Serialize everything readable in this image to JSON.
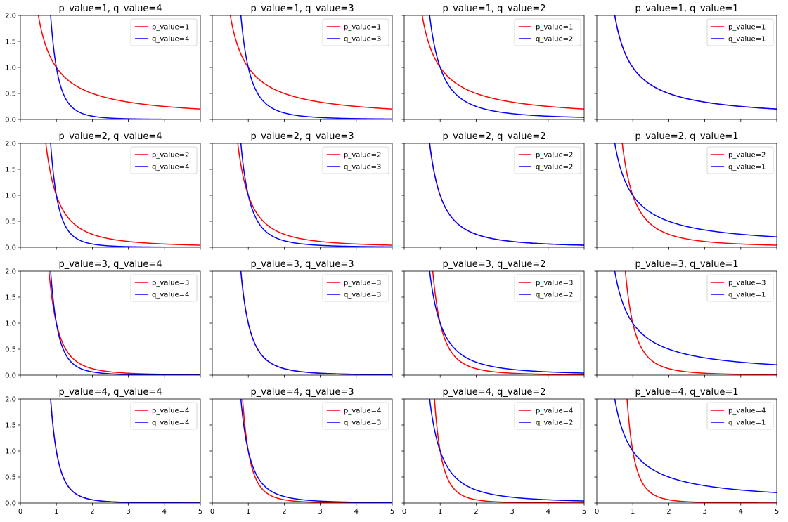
{
  "chart_data": [
    {
      "type": "line",
      "title": "p_value=1, q_value=4",
      "xlim": [
        0,
        5
      ],
      "ylim": [
        0,
        2
      ],
      "x_ticks": [
        "0",
        "1",
        "2",
        "3",
        "4",
        "5"
      ],
      "y_ticks": [
        "0.0",
        "0.5",
        "1.0",
        "1.5",
        "2.0"
      ],
      "legend": "top-right",
      "function": "y = x^(-n)",
      "series": [
        {
          "name": "p_value=1",
          "exponent": 1,
          "color": "#ff0000"
        },
        {
          "name": "q_value=4",
          "exponent": 4,
          "color": "#0000ff"
        }
      ]
    },
    {
      "type": "line",
      "title": "p_value=1, q_value=3",
      "xlim": [
        0,
        5
      ],
      "ylim": [
        0,
        2
      ],
      "x_ticks": [
        "0",
        "1",
        "2",
        "3",
        "4",
        "5"
      ],
      "y_ticks": [
        "0.0",
        "0.5",
        "1.0",
        "1.5",
        "2.0"
      ],
      "legend": "top-right",
      "function": "y = x^(-n)",
      "series": [
        {
          "name": "p_value=1",
          "exponent": 1,
          "color": "#ff0000"
        },
        {
          "name": "q_value=3",
          "exponent": 3,
          "color": "#0000ff"
        }
      ]
    },
    {
      "type": "line",
      "title": "p_value=1, q_value=2",
      "xlim": [
        0,
        5
      ],
      "ylim": [
        0,
        2
      ],
      "x_ticks": [
        "0",
        "1",
        "2",
        "3",
        "4",
        "5"
      ],
      "y_ticks": [
        "0.0",
        "0.5",
        "1.0",
        "1.5",
        "2.0"
      ],
      "legend": "top-right",
      "function": "y = x^(-n)",
      "series": [
        {
          "name": "p_value=1",
          "exponent": 1,
          "color": "#ff0000"
        },
        {
          "name": "q_value=2",
          "exponent": 2,
          "color": "#0000ff"
        }
      ]
    },
    {
      "type": "line",
      "title": "p_value=1, q_value=1",
      "xlim": [
        0,
        5
      ],
      "ylim": [
        0,
        2
      ],
      "x_ticks": [
        "0",
        "1",
        "2",
        "3",
        "4",
        "5"
      ],
      "y_ticks": [
        "0.0",
        "0.5",
        "1.0",
        "1.5",
        "2.0"
      ],
      "legend": "top-right",
      "function": "y = x^(-n)",
      "series": [
        {
          "name": "p_value=1",
          "exponent": 1,
          "color": "#ff0000"
        },
        {
          "name": "q_value=1",
          "exponent": 1,
          "color": "#0000ff"
        }
      ]
    },
    {
      "type": "line",
      "title": "p_value=2, q_value=4",
      "xlim": [
        0,
        5
      ],
      "ylim": [
        0,
        2
      ],
      "x_ticks": [
        "0",
        "1",
        "2",
        "3",
        "4",
        "5"
      ],
      "y_ticks": [
        "0.0",
        "0.5",
        "1.0",
        "1.5",
        "2.0"
      ],
      "legend": "top-right",
      "function": "y = x^(-n)",
      "series": [
        {
          "name": "p_value=2",
          "exponent": 2,
          "color": "#ff0000"
        },
        {
          "name": "q_value=4",
          "exponent": 4,
          "color": "#0000ff"
        }
      ]
    },
    {
      "type": "line",
      "title": "p_value=2, q_value=3",
      "xlim": [
        0,
        5
      ],
      "ylim": [
        0,
        2
      ],
      "x_ticks": [
        "0",
        "1",
        "2",
        "3",
        "4",
        "5"
      ],
      "y_ticks": [
        "0.0",
        "0.5",
        "1.0",
        "1.5",
        "2.0"
      ],
      "legend": "top-right",
      "function": "y = x^(-n)",
      "series": [
        {
          "name": "p_value=2",
          "exponent": 2,
          "color": "#ff0000"
        },
        {
          "name": "q_value=3",
          "exponent": 3,
          "color": "#0000ff"
        }
      ]
    },
    {
      "type": "line",
      "title": "p_value=2, q_value=2",
      "xlim": [
        0,
        5
      ],
      "ylim": [
        0,
        2
      ],
      "x_ticks": [
        "0",
        "1",
        "2",
        "3",
        "4",
        "5"
      ],
      "y_ticks": [
        "0.0",
        "0.5",
        "1.0",
        "1.5",
        "2.0"
      ],
      "legend": "top-right",
      "function": "y = x^(-n)",
      "series": [
        {
          "name": "p_value=2",
          "exponent": 2,
          "color": "#ff0000"
        },
        {
          "name": "q_value=2",
          "exponent": 2,
          "color": "#0000ff"
        }
      ]
    },
    {
      "type": "line",
      "title": "p_value=2, q_value=1",
      "xlim": [
        0,
        5
      ],
      "ylim": [
        0,
        2
      ],
      "x_ticks": [
        "0",
        "1",
        "2",
        "3",
        "4",
        "5"
      ],
      "y_ticks": [
        "0.0",
        "0.5",
        "1.0",
        "1.5",
        "2.0"
      ],
      "legend": "top-right",
      "function": "y = x^(-n)",
      "series": [
        {
          "name": "p_value=2",
          "exponent": 2,
          "color": "#ff0000"
        },
        {
          "name": "q_value=1",
          "exponent": 1,
          "color": "#0000ff"
        }
      ]
    },
    {
      "type": "line",
      "title": "p_value=3, q_value=4",
      "xlim": [
        0,
        5
      ],
      "ylim": [
        0,
        2
      ],
      "x_ticks": [
        "0",
        "1",
        "2",
        "3",
        "4",
        "5"
      ],
      "y_ticks": [
        "0.0",
        "0.5",
        "1.0",
        "1.5",
        "2.0"
      ],
      "legend": "top-right",
      "function": "y = x^(-n)",
      "series": [
        {
          "name": "p_value=3",
          "exponent": 3,
          "color": "#ff0000"
        },
        {
          "name": "q_value=4",
          "exponent": 4,
          "color": "#0000ff"
        }
      ]
    },
    {
      "type": "line",
      "title": "p_value=3, q_value=3",
      "xlim": [
        0,
        5
      ],
      "ylim": [
        0,
        2
      ],
      "x_ticks": [
        "0",
        "1",
        "2",
        "3",
        "4",
        "5"
      ],
      "y_ticks": [
        "0.0",
        "0.5",
        "1.0",
        "1.5",
        "2.0"
      ],
      "legend": "top-right",
      "function": "y = x^(-n)",
      "series": [
        {
          "name": "p_value=3",
          "exponent": 3,
          "color": "#ff0000"
        },
        {
          "name": "q_value=3",
          "exponent": 3,
          "color": "#0000ff"
        }
      ]
    },
    {
      "type": "line",
      "title": "p_value=3, q_value=2",
      "xlim": [
        0,
        5
      ],
      "ylim": [
        0,
        2
      ],
      "x_ticks": [
        "0",
        "1",
        "2",
        "3",
        "4",
        "5"
      ],
      "y_ticks": [
        "0.0",
        "0.5",
        "1.0",
        "1.5",
        "2.0"
      ],
      "legend": "top-right",
      "function": "y = x^(-n)",
      "series": [
        {
          "name": "p_value=3",
          "exponent": 3,
          "color": "#ff0000"
        },
        {
          "name": "q_value=2",
          "exponent": 2,
          "color": "#0000ff"
        }
      ]
    },
    {
      "type": "line",
      "title": "p_value=3, q_value=1",
      "xlim": [
        0,
        5
      ],
      "ylim": [
        0,
        2
      ],
      "x_ticks": [
        "0",
        "1",
        "2",
        "3",
        "4",
        "5"
      ],
      "y_ticks": [
        "0.0",
        "0.5",
        "1.0",
        "1.5",
        "2.0"
      ],
      "legend": "top-right",
      "function": "y = x^(-n)",
      "series": [
        {
          "name": "p_value=3",
          "exponent": 3,
          "color": "#ff0000"
        },
        {
          "name": "q_value=1",
          "exponent": 1,
          "color": "#0000ff"
        }
      ]
    },
    {
      "type": "line",
      "title": "p_value=4, q_value=4",
      "xlim": [
        0,
        5
      ],
      "ylim": [
        0,
        2
      ],
      "x_ticks": [
        "0",
        "1",
        "2",
        "3",
        "4",
        "5"
      ],
      "y_ticks": [
        "0.0",
        "0.5",
        "1.0",
        "1.5",
        "2.0"
      ],
      "legend": "top-right",
      "function": "y = x^(-n)",
      "series": [
        {
          "name": "p_value=4",
          "exponent": 4,
          "color": "#ff0000"
        },
        {
          "name": "q_value=4",
          "exponent": 4,
          "color": "#0000ff"
        }
      ]
    },
    {
      "type": "line",
      "title": "p_value=4, q_value=3",
      "xlim": [
        0,
        5
      ],
      "ylim": [
        0,
        2
      ],
      "x_ticks": [
        "0",
        "1",
        "2",
        "3",
        "4",
        "5"
      ],
      "y_ticks": [
        "0.0",
        "0.5",
        "1.0",
        "1.5",
        "2.0"
      ],
      "legend": "top-right",
      "function": "y = x^(-n)",
      "series": [
        {
          "name": "p_value=4",
          "exponent": 4,
          "color": "#ff0000"
        },
        {
          "name": "q_value=3",
          "exponent": 3,
          "color": "#0000ff"
        }
      ]
    },
    {
      "type": "line",
      "title": "p_value=4, q_value=2",
      "xlim": [
        0,
        5
      ],
      "ylim": [
        0,
        2
      ],
      "x_ticks": [
        "0",
        "1",
        "2",
        "3",
        "4",
        "5"
      ],
      "y_ticks": [
        "0.0",
        "0.5",
        "1.0",
        "1.5",
        "2.0"
      ],
      "legend": "top-right",
      "function": "y = x^(-n)",
      "series": [
        {
          "name": "p_value=4",
          "exponent": 4,
          "color": "#ff0000"
        },
        {
          "name": "q_value=2",
          "exponent": 2,
          "color": "#0000ff"
        }
      ]
    },
    {
      "type": "line",
      "title": "p_value=4, q_value=1",
      "xlim": [
        0,
        5
      ],
      "ylim": [
        0,
        2
      ],
      "x_ticks": [
        "0",
        "1",
        "2",
        "3",
        "4",
        "5"
      ],
      "y_ticks": [
        "0.0",
        "0.5",
        "1.0",
        "1.5",
        "2.0"
      ],
      "legend": "top-right",
      "function": "y = x^(-n)",
      "series": [
        {
          "name": "p_value=4",
          "exponent": 4,
          "color": "#ff0000"
        },
        {
          "name": "q_value=1",
          "exponent": 1,
          "color": "#0000ff"
        }
      ]
    }
  ]
}
